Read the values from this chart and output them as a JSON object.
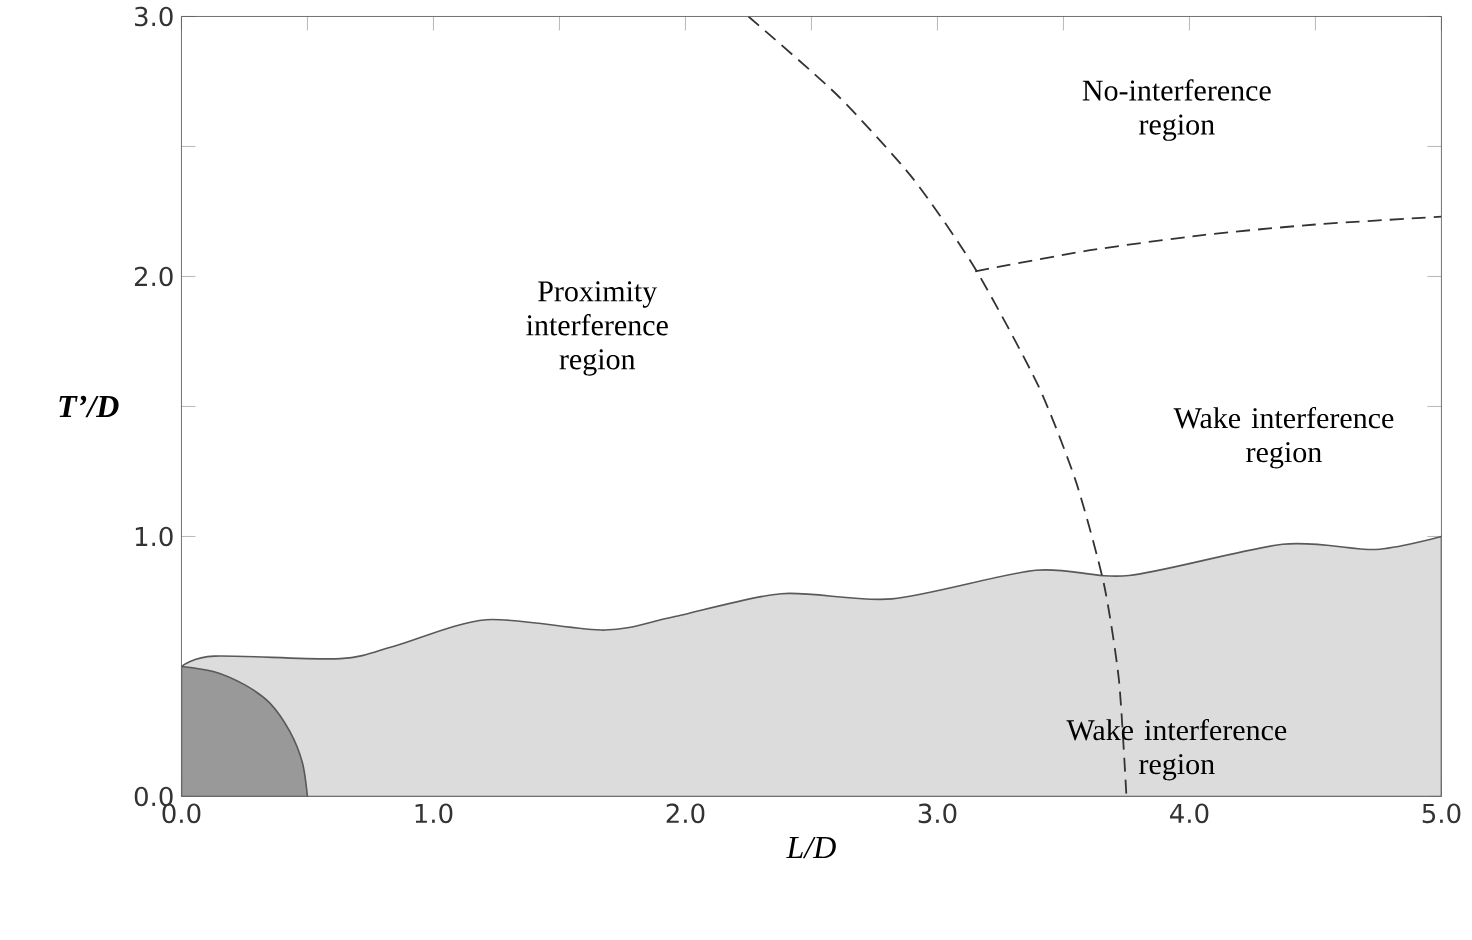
{
  "chart_data": {
    "type": "line",
    "xlabel": "L/D",
    "ylabel": "T’/D",
    "xlim": [
      0,
      5
    ],
    "ylim": [
      0,
      3
    ],
    "xticks": [
      {
        "value": 0,
        "label": "0.0"
      },
      {
        "value": 0.5,
        "label": null
      },
      {
        "value": 1,
        "label": "1.0"
      },
      {
        "value": 1.5,
        "label": null
      },
      {
        "value": 2,
        "label": "2.0"
      },
      {
        "value": 2.5,
        "label": null
      },
      {
        "value": 3,
        "label": "3.0"
      },
      {
        "value": 3.5,
        "label": null
      },
      {
        "value": 4,
        "label": "4.0"
      },
      {
        "value": 4.5,
        "label": null
      },
      {
        "value": 5,
        "label": "5.0"
      }
    ],
    "yticks": [
      {
        "value": 0,
        "label": "0.0"
      },
      {
        "value": 0.5,
        "label": null
      },
      {
        "value": 1,
        "label": "1.0"
      },
      {
        "value": 1.5,
        "label": null
      },
      {
        "value": 2,
        "label": "2.0"
      },
      {
        "value": 2.5,
        "label": null
      },
      {
        "value": 3,
        "label": "3.0"
      }
    ],
    "series": [
      {
        "type": "area",
        "color": "#dcdcdc",
        "x": [
          0,
          0.13,
          0.63,
          0.85,
          1.21,
          1.68,
          1.95,
          2.38,
          2.82,
          3.39,
          3.76,
          4.37,
          4.74,
          5
        ],
        "values": [
          0.5,
          0.54,
          0.53,
          0.58,
          0.68,
          0.64,
          0.69,
          0.78,
          0.76,
          0.87,
          0.85,
          0.97,
          0.95,
          1.0
        ]
      },
      {
        "type": "area",
        "color": "#999999",
        "x": [
          0,
          0.13,
          0.25,
          0.35,
          0.43,
          0.48,
          0.5
        ],
        "values": [
          0.5,
          0.48,
          0.43,
          0.36,
          0.25,
          0.13,
          0
        ]
      },
      {
        "color": "#333333",
        "line_style": "dashed",
        "x": [
          2.25,
          2.6,
          2.9,
          3.15,
          3.4,
          3.55,
          3.66,
          3.72,
          3.75
        ],
        "values": [
          3.0,
          2.7,
          2.38,
          2.03,
          1.58,
          1.21,
          0.82,
          0.45,
          0
        ]
      },
      {
        "color": "#333333",
        "line_style": "dashed",
        "x": [
          3.15,
          3.6,
          4.06,
          4.5,
          5.0
        ],
        "values": [
          2.02,
          2.1,
          2.16,
          2.2,
          2.23
        ]
      }
    ],
    "annotations": [
      "Proximity interference region",
      "No-interference region",
      "Wake interference region",
      "Wake interference region"
    ],
    "grid": false
  }
}
